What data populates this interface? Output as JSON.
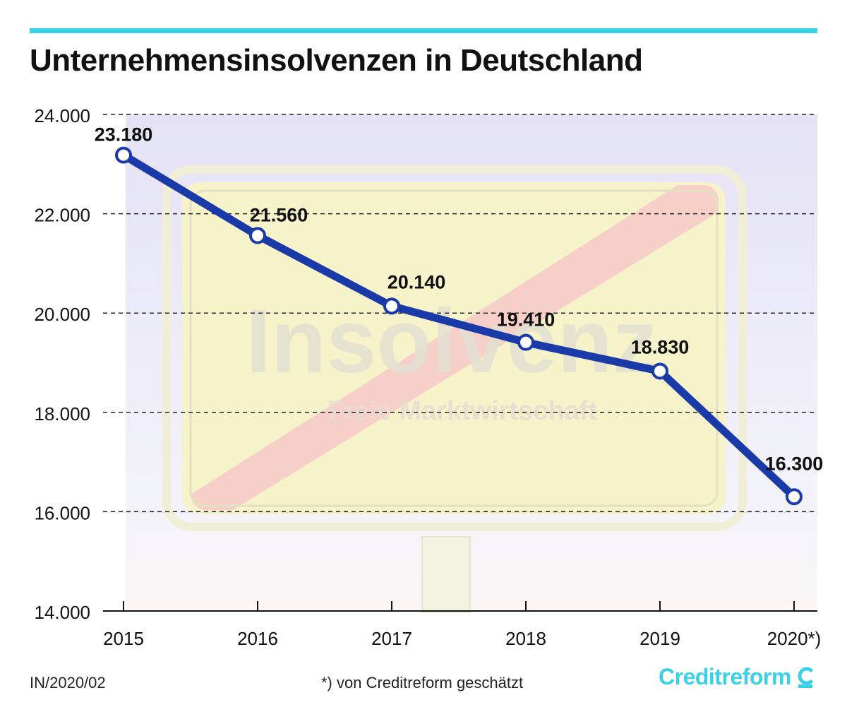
{
  "title": "Unternehmensinsolvenzen in Deutschland",
  "footer": {
    "code": "IN/2020/02",
    "note": "*) von Creditreform geschätzt",
    "brand": "Creditreform"
  },
  "background_sign": {
    "main_text": "Insolvenz",
    "sub_text": "Freie Marktwirtschaft"
  },
  "colors": {
    "accent_line": "#3ad0e8",
    "series": "#1a3aa8",
    "marker_fill": "#ffffff",
    "brand": "#3ad0e8",
    "sign_yellow": "#f2ec9c",
    "sign_red": "#f0a8a4",
    "sky": "#dcd9f2"
  },
  "icons": {
    "brand": "creditreform-logo-icon"
  },
  "chart_data": {
    "type": "line",
    "categories": [
      "2015",
      "2016",
      "2017",
      "2018",
      "2019",
      "2020*)"
    ],
    "series": [
      {
        "values": [
          23180,
          21560,
          20140,
          19410,
          18830,
          16300
        ]
      }
    ],
    "data_labels": [
      "23.180",
      "21.560",
      "20.140",
      "19.410",
      "18.830",
      "16.300"
    ],
    "yticks": [
      14000,
      16000,
      18000,
      20000,
      22000,
      24000
    ],
    "ytick_labels": [
      "14.000",
      "16.000",
      "18.000",
      "20.000",
      "22.000",
      "24.000"
    ],
    "ylim": [
      14000,
      24000
    ],
    "xlabel": "",
    "ylabel": "",
    "grid": true,
    "grid_style": "dashed",
    "legend": "none"
  }
}
